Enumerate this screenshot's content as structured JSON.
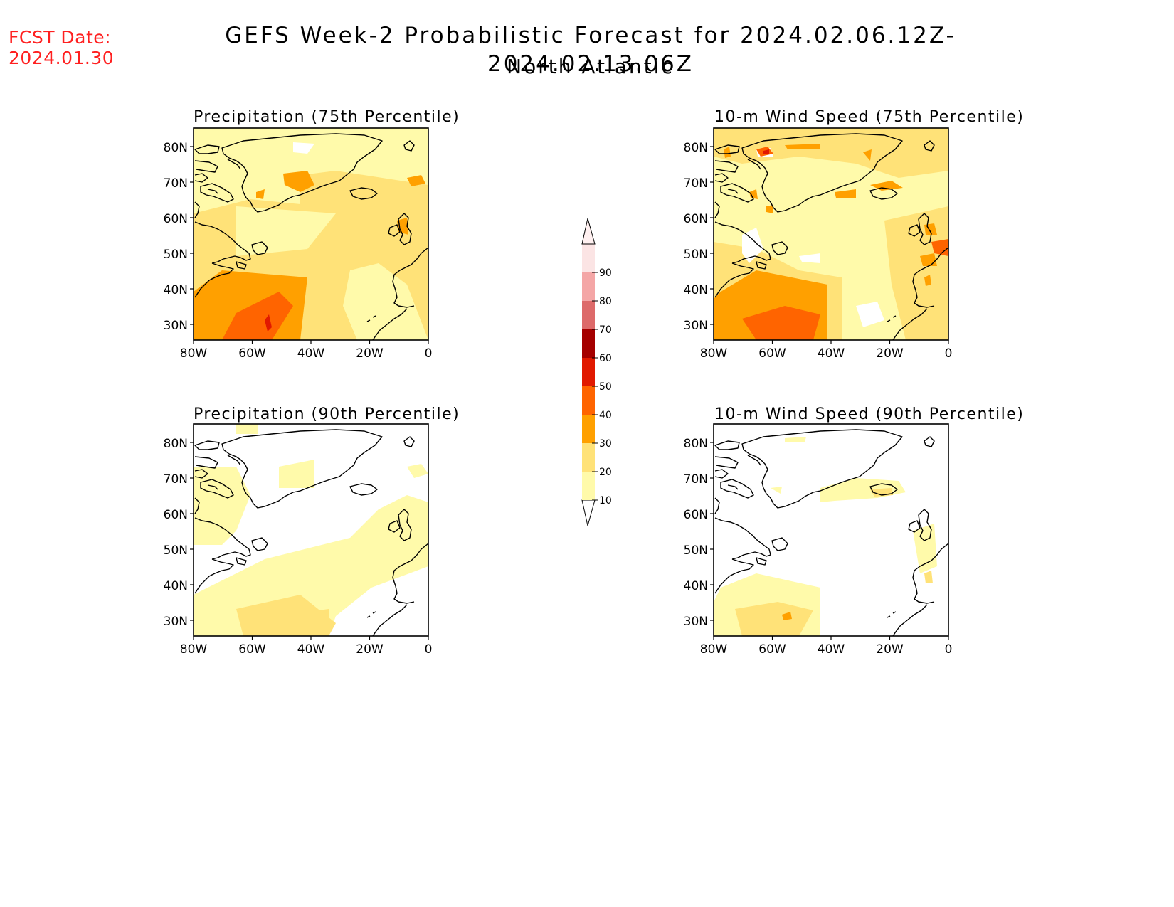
{
  "header": {
    "fcst_label": "FCST Date:",
    "fcst_date": "2024.01.30",
    "title": "GEFS Week-2 Probabilistic Forecast for 2024.02.06.12Z-2024.02.13.06Z",
    "subtitle": "North Atlantic"
  },
  "panels": [
    {
      "title": "Precipitation (75th Percentile)"
    },
    {
      "title": "10-m Wind Speed (75th Percentile)"
    },
    {
      "title": "Precipitation (90th Percentile)"
    },
    {
      "title": "10-m Wind Speed (90th Percentile)"
    }
  ],
  "map_axes": {
    "lat_labels": [
      "80N",
      "70N",
      "60N",
      "50N",
      "40N",
      "30N"
    ],
    "lon_labels": [
      "80W",
      "60W",
      "40W",
      "20W",
      "0"
    ]
  },
  "colorbar": {
    "levels": [
      "10",
      "20",
      "30",
      "40",
      "50",
      "60",
      "70",
      "80",
      "90"
    ],
    "colors": [
      "#fffaaa",
      "#ffe278",
      "#ffa000",
      "#ff6400",
      "#e11900",
      "#a50000",
      "#dd6a6a",
      "#f4a6a6",
      "#fbe4e4"
    ]
  }
}
